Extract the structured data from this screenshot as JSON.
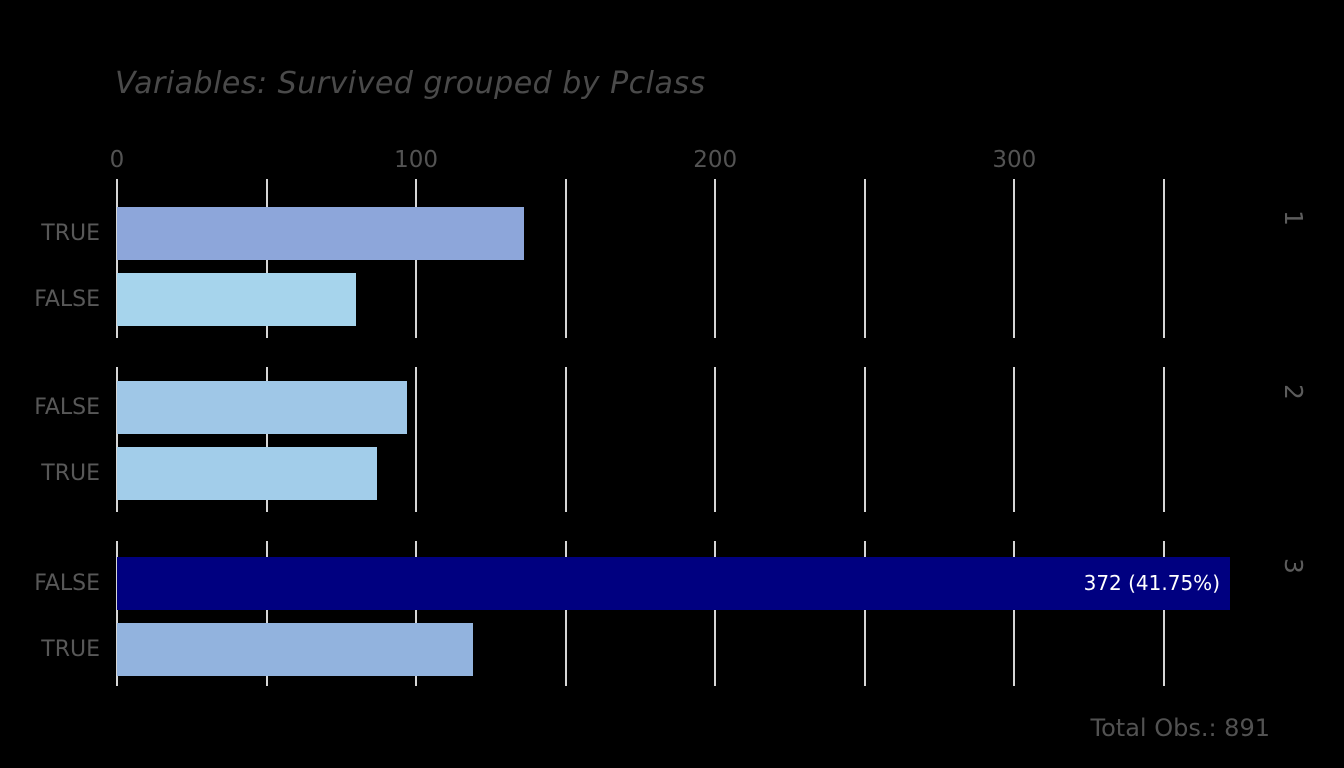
{
  "title": "Variables: Survived grouped by Pclass",
  "footer": {
    "total_obs": "Total Obs.: 891"
  },
  "axis": {
    "tick_values": [
      0,
      50,
      100,
      150,
      200,
      250,
      300,
      350
    ],
    "tick_labels": [
      "0",
      "",
      "100",
      "",
      "200",
      "",
      "300",
      ""
    ],
    "max_value": 350
  },
  "colors": {
    "background": "#000000",
    "gridline": "#d6d6d6",
    "title_text": "#4a4a4a",
    "axis_text": "#535353",
    "category_text": "#585858",
    "facet_text": "#5c5c5c",
    "highlight_bar": "#000080",
    "highlight_label_text": "#ffffff"
  },
  "chart_data": {
    "type": "bar",
    "orientation": "horizontal",
    "title": "Variables: Survived grouped by Pclass",
    "facet_variable": "Pclass",
    "value_axis": "count of observations",
    "xlim": [
      0,
      375
    ],
    "grid": "on",
    "total_obs": 891,
    "groups": [
      {
        "facet": "1",
        "bars": [
          {
            "label": "TRUE",
            "value": 136,
            "color": "#8da6da",
            "bar_label": ""
          },
          {
            "label": "FALSE",
            "value": 80,
            "color": "#a6d4ec",
            "bar_label": ""
          }
        ]
      },
      {
        "facet": "2",
        "bars": [
          {
            "label": "FALSE",
            "value": 97,
            "color": "#9fc7e7",
            "bar_label": ""
          },
          {
            "label": "TRUE",
            "value": 87,
            "color": "#a2cdea",
            "bar_label": ""
          }
        ]
      },
      {
        "facet": "3",
        "bars": [
          {
            "label": "FALSE",
            "value": 372,
            "color": "#000080",
            "bar_label": "372 (41.75%)"
          },
          {
            "label": "TRUE",
            "value": 119,
            "color": "#92b3de",
            "bar_label": ""
          }
        ]
      }
    ]
  }
}
